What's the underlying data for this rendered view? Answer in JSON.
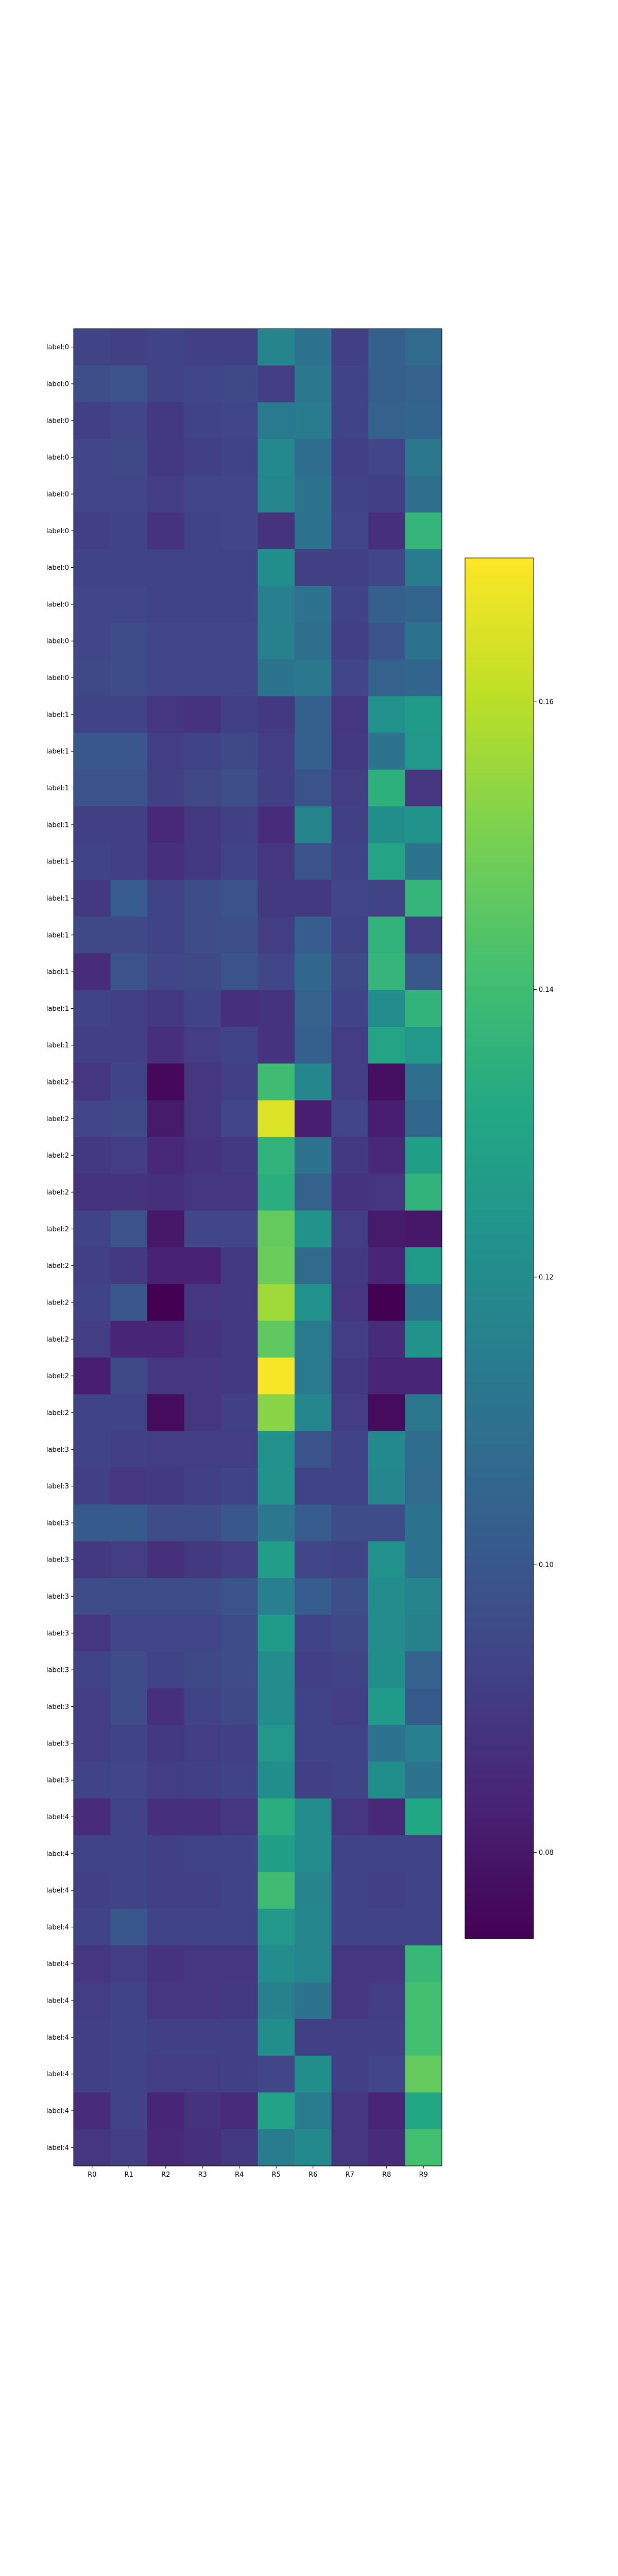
{
  "chart_data": {
    "type": "heatmap",
    "title": "",
    "xlabel": "",
    "ylabel": "",
    "x_categories": [
      "R0",
      "R1",
      "R2",
      "R3",
      "R4",
      "R5",
      "R6",
      "R7",
      "R8",
      "R9"
    ],
    "y_categories": [
      "label:0",
      "label:0",
      "label:0",
      "label:0",
      "label:0",
      "label:0",
      "label:0",
      "label:0",
      "label:0",
      "label:0",
      "label:1",
      "label:1",
      "label:1",
      "label:1",
      "label:1",
      "label:1",
      "label:1",
      "label:1",
      "label:1",
      "label:1",
      "label:2",
      "label:2",
      "label:2",
      "label:2",
      "label:2",
      "label:2",
      "label:2",
      "label:2",
      "label:2",
      "label:2",
      "label:3",
      "label:3",
      "label:3",
      "label:3",
      "label:3",
      "label:3",
      "label:3",
      "label:3",
      "label:3",
      "label:3",
      "label:4",
      "label:4",
      "label:4",
      "label:4",
      "label:4",
      "label:4",
      "label:4",
      "label:4",
      "label:4",
      "label:4"
    ],
    "values": [
      [
        0.093,
        0.092,
        0.093,
        0.092,
        0.092,
        0.117,
        0.11,
        0.092,
        0.103,
        0.107
      ],
      [
        0.097,
        0.099,
        0.093,
        0.094,
        0.095,
        0.091,
        0.112,
        0.093,
        0.103,
        0.104
      ],
      [
        0.092,
        0.094,
        0.09,
        0.093,
        0.094,
        0.113,
        0.114,
        0.093,
        0.104,
        0.105
      ],
      [
        0.094,
        0.095,
        0.09,
        0.092,
        0.093,
        0.119,
        0.108,
        0.092,
        0.094,
        0.112
      ],
      [
        0.094,
        0.094,
        0.091,
        0.094,
        0.094,
        0.118,
        0.111,
        0.093,
        0.092,
        0.109
      ],
      [
        0.092,
        0.093,
        0.088,
        0.093,
        0.094,
        0.088,
        0.11,
        0.094,
        0.087,
        0.137
      ],
      [
        0.093,
        0.093,
        0.093,
        0.093,
        0.093,
        0.121,
        0.092,
        0.092,
        0.094,
        0.114
      ],
      [
        0.094,
        0.094,
        0.093,
        0.093,
        0.093,
        0.115,
        0.11,
        0.093,
        0.103,
        0.105
      ],
      [
        0.094,
        0.096,
        0.094,
        0.094,
        0.094,
        0.116,
        0.109,
        0.092,
        0.098,
        0.111
      ],
      [
        0.095,
        0.096,
        0.094,
        0.094,
        0.094,
        0.111,
        0.112,
        0.094,
        0.104,
        0.105
      ],
      [
        0.093,
        0.093,
        0.089,
        0.088,
        0.092,
        0.09,
        0.103,
        0.089,
        0.122,
        0.126
      ],
      [
        0.1,
        0.1,
        0.091,
        0.093,
        0.095,
        0.091,
        0.103,
        0.09,
        0.111,
        0.125
      ],
      [
        0.098,
        0.098,
        0.092,
        0.095,
        0.097,
        0.092,
        0.099,
        0.091,
        0.135,
        0.089
      ],
      [
        0.092,
        0.092,
        0.085,
        0.09,
        0.092,
        0.086,
        0.117,
        0.092,
        0.121,
        0.123
      ],
      [
        0.093,
        0.092,
        0.087,
        0.09,
        0.093,
        0.089,
        0.099,
        0.093,
        0.13,
        0.111
      ],
      [
        0.09,
        0.102,
        0.093,
        0.096,
        0.098,
        0.09,
        0.09,
        0.094,
        0.093,
        0.137
      ],
      [
        0.095,
        0.095,
        0.093,
        0.096,
        0.097,
        0.091,
        0.102,
        0.093,
        0.136,
        0.091
      ],
      [
        0.086,
        0.099,
        0.094,
        0.095,
        0.099,
        0.094,
        0.106,
        0.095,
        0.137,
        0.1
      ],
      [
        0.093,
        0.092,
        0.09,
        0.093,
        0.087,
        0.088,
        0.104,
        0.093,
        0.12,
        0.136
      ],
      [
        0.092,
        0.092,
        0.087,
        0.091,
        0.093,
        0.088,
        0.103,
        0.091,
        0.13,
        0.125
      ],
      [
        0.089,
        0.093,
        0.076,
        0.089,
        0.092,
        0.14,
        0.118,
        0.091,
        0.078,
        0.109
      ],
      [
        0.094,
        0.095,
        0.081,
        0.089,
        0.094,
        0.165,
        0.082,
        0.094,
        0.082,
        0.106
      ],
      [
        0.09,
        0.091,
        0.085,
        0.088,
        0.09,
        0.136,
        0.11,
        0.09,
        0.085,
        0.128
      ],
      [
        0.088,
        0.088,
        0.087,
        0.089,
        0.089,
        0.134,
        0.104,
        0.088,
        0.089,
        0.136
      ],
      [
        0.093,
        0.098,
        0.08,
        0.094,
        0.094,
        0.147,
        0.123,
        0.091,
        0.081,
        0.08
      ],
      [
        0.092,
        0.09,
        0.083,
        0.083,
        0.09,
        0.148,
        0.107,
        0.09,
        0.084,
        0.126
      ],
      [
        0.093,
        0.1,
        0.074,
        0.089,
        0.09,
        0.156,
        0.122,
        0.089,
        0.074,
        0.111
      ],
      [
        0.091,
        0.084,
        0.084,
        0.088,
        0.09,
        0.146,
        0.113,
        0.091,
        0.086,
        0.123
      ],
      [
        0.082,
        0.095,
        0.089,
        0.089,
        0.09,
        0.169,
        0.113,
        0.09,
        0.084,
        0.084
      ],
      [
        0.093,
        0.093,
        0.077,
        0.089,
        0.092,
        0.153,
        0.118,
        0.091,
        0.077,
        0.112
      ],
      [
        0.093,
        0.092,
        0.091,
        0.091,
        0.091,
        0.122,
        0.099,
        0.093,
        0.119,
        0.108
      ],
      [
        0.092,
        0.089,
        0.09,
        0.092,
        0.093,
        0.123,
        0.093,
        0.093,
        0.118,
        0.107
      ],
      [
        0.101,
        0.101,
        0.096,
        0.096,
        0.1,
        0.112,
        0.102,
        0.096,
        0.096,
        0.111
      ],
      [
        0.09,
        0.091,
        0.087,
        0.09,
        0.091,
        0.127,
        0.094,
        0.093,
        0.122,
        0.11
      ],
      [
        0.096,
        0.096,
        0.096,
        0.096,
        0.099,
        0.115,
        0.102,
        0.097,
        0.12,
        0.117
      ],
      [
        0.089,
        0.094,
        0.094,
        0.094,
        0.096,
        0.126,
        0.093,
        0.095,
        0.12,
        0.116
      ],
      [
        0.093,
        0.096,
        0.093,
        0.095,
        0.096,
        0.12,
        0.092,
        0.093,
        0.121,
        0.104
      ],
      [
        0.091,
        0.096,
        0.087,
        0.093,
        0.095,
        0.12,
        0.093,
        0.091,
        0.126,
        0.101
      ],
      [
        0.091,
        0.093,
        0.09,
        0.091,
        0.092,
        0.125,
        0.093,
        0.093,
        0.11,
        0.115
      ],
      [
        0.093,
        0.094,
        0.091,
        0.092,
        0.093,
        0.121,
        0.092,
        0.093,
        0.121,
        0.111
      ],
      [
        0.086,
        0.093,
        0.087,
        0.087,
        0.089,
        0.134,
        0.12,
        0.089,
        0.085,
        0.131
      ],
      [
        0.093,
        0.093,
        0.092,
        0.093,
        0.093,
        0.128,
        0.12,
        0.093,
        0.093,
        0.093
      ],
      [
        0.092,
        0.093,
        0.092,
        0.092,
        0.093,
        0.14,
        0.117,
        0.093,
        0.092,
        0.093
      ],
      [
        0.093,
        0.1,
        0.093,
        0.093,
        0.093,
        0.125,
        0.118,
        0.093,
        0.093,
        0.093
      ],
      [
        0.089,
        0.091,
        0.088,
        0.089,
        0.089,
        0.12,
        0.118,
        0.089,
        0.089,
        0.138
      ],
      [
        0.091,
        0.093,
        0.089,
        0.089,
        0.09,
        0.116,
        0.111,
        0.089,
        0.091,
        0.141
      ],
      [
        0.092,
        0.093,
        0.092,
        0.092,
        0.092,
        0.121,
        0.092,
        0.092,
        0.092,
        0.141
      ],
      [
        0.092,
        0.093,
        0.091,
        0.091,
        0.092,
        0.094,
        0.121,
        0.092,
        0.094,
        0.147
      ],
      [
        0.086,
        0.093,
        0.084,
        0.088,
        0.086,
        0.129,
        0.114,
        0.089,
        0.084,
        0.131
      ],
      [
        0.089,
        0.091,
        0.085,
        0.087,
        0.09,
        0.114,
        0.119,
        0.089,
        0.086,
        0.141
      ]
    ],
    "colormap": "viridis",
    "vmin": 0.074,
    "vmax": 0.17,
    "colorbar_ticks": [
      0.08,
      0.1,
      0.12,
      0.14,
      0.16
    ],
    "colorbar_tick_labels": [
      "0.08",
      "0.10",
      "0.12",
      "0.14",
      "0.16"
    ],
    "grid": false,
    "legend": "colorbar-right"
  }
}
